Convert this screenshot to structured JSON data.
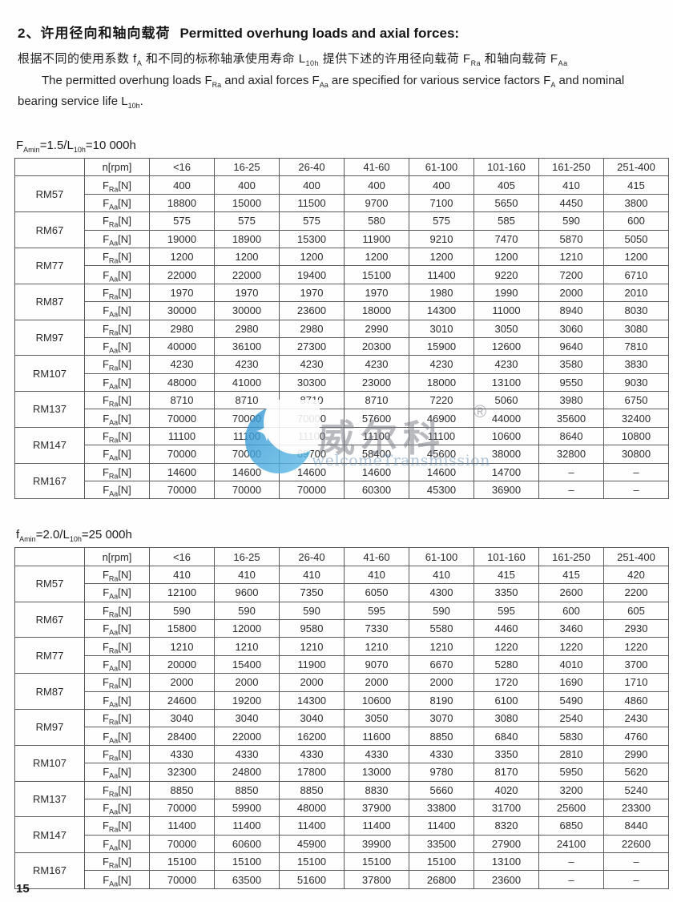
{
  "header": {
    "title_zh": "2、许用径向和轴向载荷",
    "title_en": "Permitted overhung loads and axial forces:",
    "para_zh": "根据不同的使用系数 f~A~ 和不同的标称轴承使用寿命 L~10h~ 提供下述的许用径向载荷 F~Ra~ 和轴向载荷 F~Aa~",
    "para_en": "The permitted overhung loads F~Ra~ and axial forces F~Aa~ are specified for various service factors F~A~ and nominal bearing service life L~10h~."
  },
  "tables": [
    {
      "label": "F~Amin~=1.5/L~10h~=10 000h",
      "rpm_header": "n[rpm]",
      "speed_ranges": [
        "<16",
        "16-25",
        "26-40",
        "41-60",
        "61-100",
        "101-160",
        "161-250",
        "251-400"
      ],
      "fra_label": "F~Ra~[N]",
      "faa_label": "F~Aa~[N]",
      "models": [
        {
          "name": "RM57",
          "fra": [
            "400",
            "400",
            "400",
            "400",
            "400",
            "405",
            "410",
            "415"
          ],
          "faa": [
            "18800",
            "15000",
            "11500",
            "9700",
            "7100",
            "5650",
            "4450",
            "3800"
          ]
        },
        {
          "name": "RM67",
          "fra": [
            "575",
            "575",
            "575",
            "580",
            "575",
            "585",
            "590",
            "600"
          ],
          "faa": [
            "19000",
            "18900",
            "15300",
            "11900",
            "9210",
            "7470",
            "5870",
            "5050"
          ]
        },
        {
          "name": "RM77",
          "fra": [
            "1200",
            "1200",
            "1200",
            "1200",
            "1200",
            "1200",
            "1210",
            "1200"
          ],
          "faa": [
            "22000",
            "22000",
            "19400",
            "15100",
            "11400",
            "9220",
            "7200",
            "6710"
          ]
        },
        {
          "name": "RM87",
          "fra": [
            "1970",
            "1970",
            "1970",
            "1970",
            "1980",
            "1990",
            "2000",
            "2010"
          ],
          "faa": [
            "30000",
            "30000",
            "23600",
            "18000",
            "14300",
            "11000",
            "8940",
            "8030"
          ]
        },
        {
          "name": "RM97",
          "fra": [
            "2980",
            "2980",
            "2980",
            "2990",
            "3010",
            "3050",
            "3060",
            "3080"
          ],
          "faa": [
            "40000",
            "36100",
            "27300",
            "20300",
            "15900",
            "12600",
            "9640",
            "7810"
          ]
        },
        {
          "name": "RM107",
          "fra": [
            "4230",
            "4230",
            "4230",
            "4230",
            "4230",
            "4230",
            "3580",
            "3830"
          ],
          "faa": [
            "48000",
            "41000",
            "30300",
            "23000",
            "18000",
            "13100",
            "9550",
            "9030"
          ]
        },
        {
          "name": "RM137",
          "fra": [
            "8710",
            "8710",
            "8710",
            "8710",
            "7220",
            "5060",
            "3980",
            "6750"
          ],
          "faa": [
            "70000",
            "70000",
            "70000",
            "57600",
            "46900",
            "44000",
            "35600",
            "32400"
          ]
        },
        {
          "name": "RM147",
          "fra": [
            "11100",
            "11100",
            "11100",
            "11100",
            "11100",
            "10600",
            "8640",
            "10800"
          ],
          "faa": [
            "70000",
            "70000",
            "69700",
            "58400",
            "45600",
            "38000",
            "32800",
            "30800"
          ]
        },
        {
          "name": "RM167",
          "fra": [
            "14600",
            "14600",
            "14600",
            "14600",
            "14600",
            "14700",
            "–",
            "–"
          ],
          "faa": [
            "70000",
            "70000",
            "70000",
            "60300",
            "45300",
            "36900",
            "–",
            "–"
          ]
        }
      ]
    },
    {
      "label": "f~Amin~=2.0/L~10h~=25 000h",
      "rpm_header": "n[rpm]",
      "speed_ranges": [
        "<16",
        "16-25",
        "26-40",
        "41-60",
        "61-100",
        "101-160",
        "161-250",
        "251-400"
      ],
      "fra_label": "F~Ra~[N]",
      "faa_label": "F~Aa~[N]",
      "models": [
        {
          "name": "RM57",
          "fra": [
            "410",
            "410",
            "410",
            "410",
            "410",
            "415",
            "415",
            "420"
          ],
          "faa": [
            "12100",
            "9600",
            "7350",
            "6050",
            "4300",
            "3350",
            "2600",
            "2200"
          ]
        },
        {
          "name": "RM67",
          "fra": [
            "590",
            "590",
            "590",
            "595",
            "590",
            "595",
            "600",
            "605"
          ],
          "faa": [
            "15800",
            "12000",
            "9580",
            "7330",
            "5580",
            "4460",
            "3460",
            "2930"
          ]
        },
        {
          "name": "RM77",
          "fra": [
            "1210",
            "1210",
            "1210",
            "1210",
            "1210",
            "1220",
            "1220",
            "1220"
          ],
          "faa": [
            "20000",
            "15400",
            "11900",
            "9070",
            "6670",
            "5280",
            "4010",
            "3700"
          ]
        },
        {
          "name": "RM87",
          "fra": [
            "2000",
            "2000",
            "2000",
            "2000",
            "2000",
            "1720",
            "1690",
            "1710"
          ],
          "faa": [
            "24600",
            "19200",
            "14300",
            "10600",
            "8190",
            "6100",
            "5490",
            "4860"
          ]
        },
        {
          "name": "RM97",
          "fra": [
            "3040",
            "3040",
            "3040",
            "3050",
            "3070",
            "3080",
            "2540",
            "2430"
          ],
          "faa": [
            "28400",
            "22000",
            "16200",
            "11600",
            "8850",
            "6840",
            "5830",
            "4760"
          ]
        },
        {
          "name": "RM107",
          "fra": [
            "4330",
            "4330",
            "4330",
            "4330",
            "4330",
            "3350",
            "2810",
            "2990"
          ],
          "faa": [
            "32300",
            "24800",
            "17800",
            "13000",
            "9780",
            "8170",
            "5950",
            "5620"
          ]
        },
        {
          "name": "RM137",
          "fra": [
            "8850",
            "8850",
            "8850",
            "8830",
            "5660",
            "4020",
            "3200",
            "5240"
          ],
          "faa": [
            "70000",
            "59900",
            "48000",
            "37900",
            "33800",
            "31700",
            "25600",
            "23300"
          ]
        },
        {
          "name": "RM147",
          "fra": [
            "11400",
            "11400",
            "11400",
            "11400",
            "11400",
            "8320",
            "6850",
            "8440"
          ],
          "faa": [
            "70000",
            "60600",
            "45900",
            "39900",
            "33500",
            "27900",
            "24100",
            "22600"
          ]
        },
        {
          "name": "RM167",
          "fra": [
            "15100",
            "15100",
            "15100",
            "15100",
            "15100",
            "13100",
            "–",
            "–"
          ],
          "faa": [
            "70000",
            "63500",
            "51600",
            "37800",
            "26800",
            "23600",
            "–",
            "–"
          ]
        }
      ]
    }
  ],
  "watermark": {
    "brand_cn": "威尔科",
    "registered_mark": "®",
    "brand_en": "welcomeTransmission",
    "brand_blue": "#45a5dc",
    "text_gray": "#7a7e88"
  },
  "footer": {
    "page_number": "15"
  }
}
